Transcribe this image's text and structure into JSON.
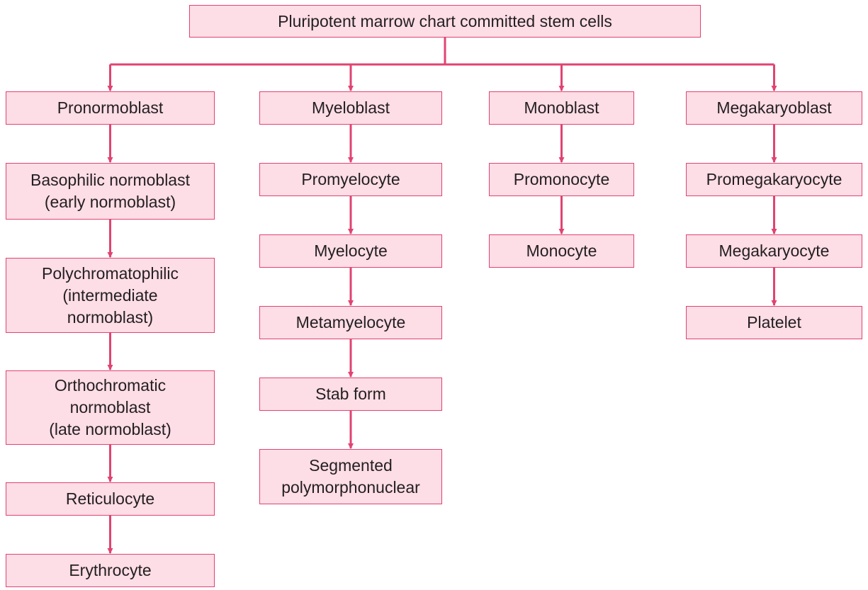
{
  "colors": {
    "box_fill": "#fddde6",
    "border": "#e04372",
    "arrow": "#e04372",
    "text": "#231f20"
  },
  "root": {
    "label": "Pluripotent marrow chart committed stem cells"
  },
  "lineages": [
    {
      "cells": [
        "Pronormoblast",
        "Basophilic normoblast\n(early normoblast)",
        "Polychromatophilic\n(intermediate\nnormoblast)",
        "Orthochromatic\nnormoblast\n(late normoblast)",
        "Reticulocyte",
        "Erythrocyte"
      ]
    },
    {
      "cells": [
        "Myeloblast",
        "Promyelocyte",
        "Myelocyte",
        "Metamyelocyte",
        "Stab form",
        "Segmented\npolymorphonuclear"
      ]
    },
    {
      "cells": [
        "Monoblast",
        "Promonocyte",
        "Monocyte"
      ]
    },
    {
      "cells": [
        "Megakaryoblast",
        "Promegakaryocyte",
        "Megakaryocyte",
        "Platelet"
      ]
    }
  ]
}
